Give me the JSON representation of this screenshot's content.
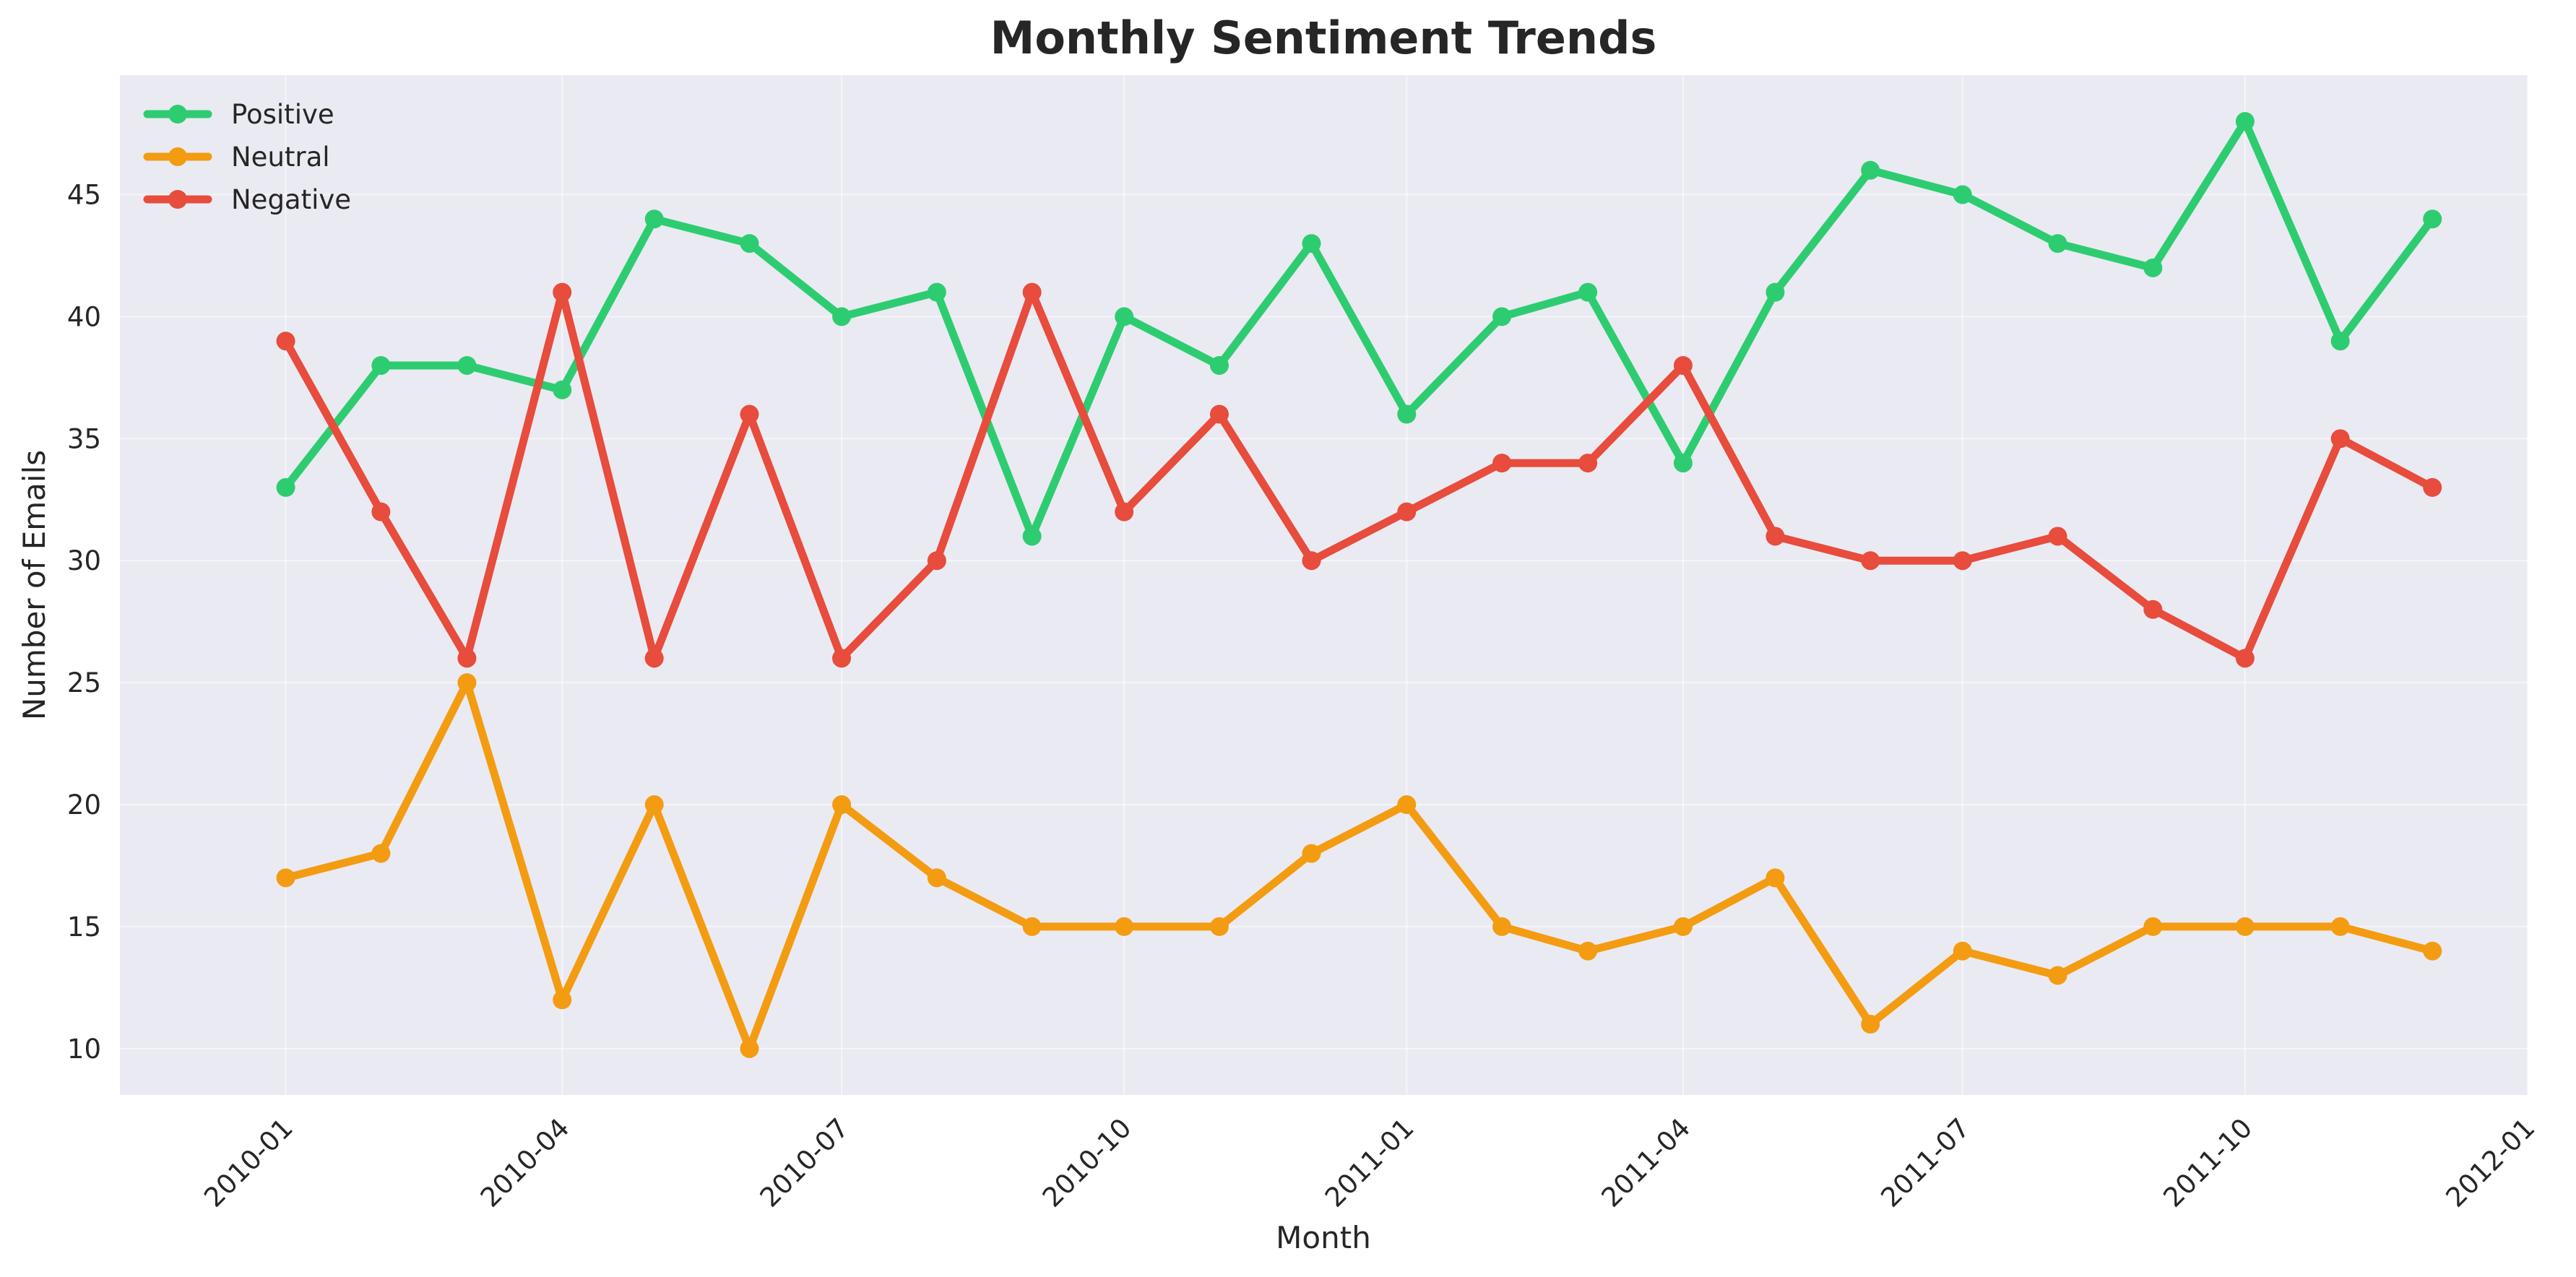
{
  "chart_data": {
    "type": "line",
    "title": "Monthly Sentiment Trends",
    "xlabel": "Month",
    "ylabel": "Number of Emails",
    "x": [
      "2010-01",
      "2010-02",
      "2010-03",
      "2010-04",
      "2010-05",
      "2010-06",
      "2010-07",
      "2010-08",
      "2010-09",
      "2010-10",
      "2010-11",
      "2010-12",
      "2011-01",
      "2011-02",
      "2011-03",
      "2011-04",
      "2011-05",
      "2011-06",
      "2011-07",
      "2011-08",
      "2011-09",
      "2011-10",
      "2011-11",
      "2011-12"
    ],
    "x_ticks": [
      "2010-01",
      "2010-04",
      "2010-07",
      "2010-10",
      "2011-01",
      "2011-04",
      "2011-07",
      "2011-10",
      "2012-01"
    ],
    "y_ticks": [
      10,
      15,
      20,
      25,
      30,
      35,
      40,
      45
    ],
    "xlim": [
      "2009-11-08",
      "2012-01-01"
    ],
    "ylim": [
      8.1,
      49.9
    ],
    "grid": true,
    "legend_position": "top-left",
    "series": [
      {
        "name": "Positive",
        "color": "#2ecc71",
        "values": [
          33,
          38,
          38,
          37,
          44,
          43,
          40,
          41,
          31,
          40,
          38,
          43,
          36,
          40,
          41,
          34,
          41,
          46,
          45,
          43,
          42,
          48,
          39,
          44
        ]
      },
      {
        "name": "Neutral",
        "color": "#f39c12",
        "values": [
          17,
          18,
          25,
          12,
          20,
          10,
          20,
          17,
          15,
          15,
          15,
          18,
          20,
          15,
          14,
          15,
          17,
          11,
          14,
          13,
          15,
          15,
          15,
          14
        ]
      },
      {
        "name": "Negative",
        "color": "#e74c3c",
        "values": [
          39,
          32,
          26,
          41,
          26,
          36,
          26,
          30,
          41,
          32,
          36,
          30,
          32,
          34,
          34,
          38,
          31,
          30,
          30,
          31,
          28,
          26,
          35,
          33
        ]
      }
    ]
  }
}
